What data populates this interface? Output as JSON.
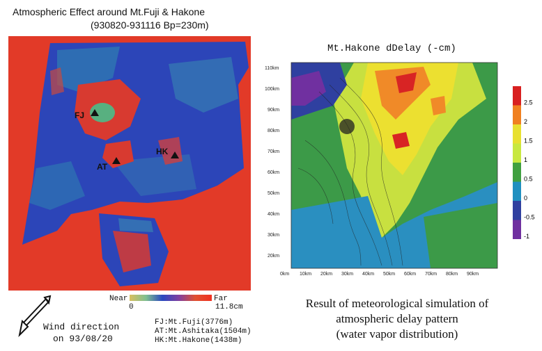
{
  "left_panel": {
    "title_line1": "Atmospheric Effect around Mt.Fuji & Hakone",
    "title_line2": "(930820-931116 Bp=230m)",
    "markers": [
      "FJ",
      "AT",
      "HK"
    ],
    "legend": {
      "near": "Near",
      "far": "Far",
      "min": "0",
      "max": "11.8cm"
    },
    "wind_line1": "Wind direction",
    "wind_line2": "on 93/08/20",
    "abbreviations": [
      "FJ:Mt.Fuji(3776m)",
      "AT:Mt.Ashitaka(1504m)",
      "HK:Mt.Hakone(1438m)"
    ]
  },
  "right_panel": {
    "map_title": "Mt.Hakone dDelay (-cm)",
    "x_ticks": [
      "0km",
      "10km",
      "20km",
      "30km",
      "40km",
      "50km",
      "60km",
      "70km",
      "80km",
      "90km"
    ],
    "y_ticks": [
      "110km",
      "100km",
      "90km",
      "80km",
      "70km",
      "60km",
      "50km",
      "40km",
      "30km",
      "20km"
    ],
    "colorbar": {
      "labels": [
        "2.5",
        "2",
        "1.5",
        "1",
        "0.5",
        "0",
        "-0.5",
        "-1"
      ],
      "colors": [
        "#d82020",
        "#f08020",
        "#e8e030",
        "#c8e840",
        "#40a040",
        "#2090c0",
        "#3040a0",
        "#7030a0"
      ]
    },
    "result_line1": "Result of meteorological simulation of",
    "result_line2": "atmospheric delay pattern",
    "result_line3": "(water vapor distribution)"
  }
}
